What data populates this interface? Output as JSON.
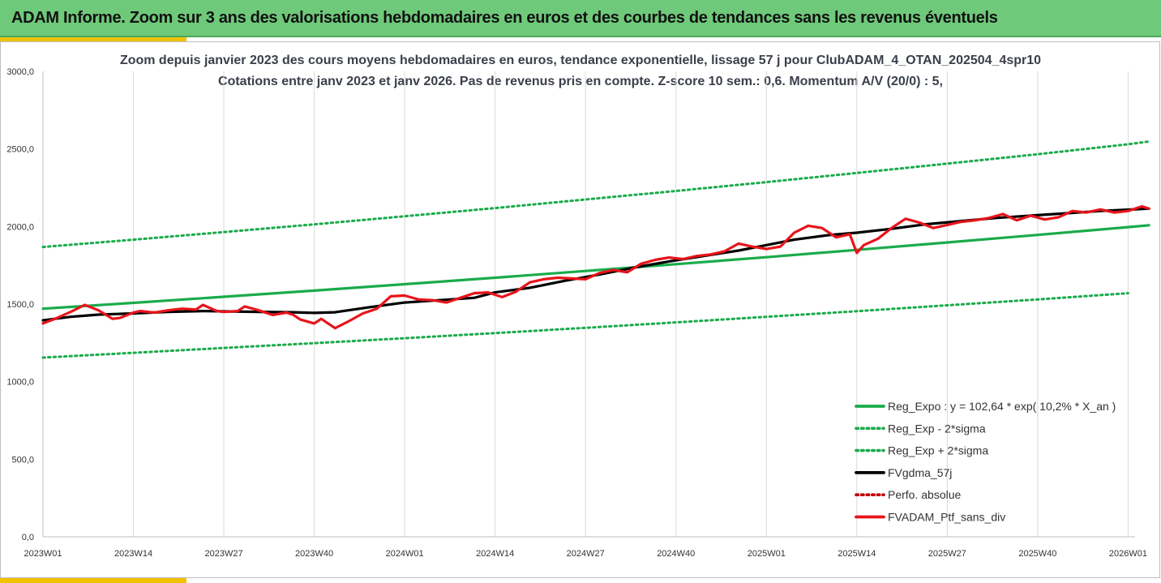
{
  "header": {
    "title": "ADAM Informe. Zoom sur 3 ans des valorisations hebdomadaires en euros et des courbes de tendances sans les revenus éventuels"
  },
  "colors": {
    "banner": "#6fc97a",
    "accent": "#f2c200",
    "reg_green": "#1aab4b",
    "fv_black": "#000000",
    "perf_red": "#c00000",
    "adam_red": "#e8141b"
  },
  "chart_data": {
    "type": "line",
    "title": "Zoom depuis janvier 2023 des cours moyens hebdomadaires  en euros, tendance exponentielle, lissage 57 j pour ClubADAM_4_OTAN_202504_4spr10",
    "subtitle": "Cotations entre janv 2023 et janv 2026. Pas de revenus pris en compte. Z-score 10 sem.: 0,6. Momentum A/V (20/0) : 5,",
    "ylim": [
      0,
      3000
    ],
    "y_ticks": [
      "0,0",
      "500,0",
      "1000,0",
      "1500,0",
      "2000,0",
      "2500,0",
      "3000,0"
    ],
    "x_range": [
      0,
      157
    ],
    "x_ticks": [
      {
        "pos": 0,
        "label": "2023W01"
      },
      {
        "pos": 13,
        "label": "2023W14"
      },
      {
        "pos": 26,
        "label": "2023W27"
      },
      {
        "pos": 39,
        "label": "2023W40"
      },
      {
        "pos": 52,
        "label": "2024W01"
      },
      {
        "pos": 65,
        "label": "2024W14"
      },
      {
        "pos": 78,
        "label": "2024W27"
      },
      {
        "pos": 91,
        "label": "2024W40"
      },
      {
        "pos": 104,
        "label": "2025W01"
      },
      {
        "pos": 117,
        "label": "2025W14"
      },
      {
        "pos": 130,
        "label": "2025W27"
      },
      {
        "pos": 143,
        "label": "2025W40"
      },
      {
        "pos": 156,
        "label": "2026W01"
      }
    ],
    "grid": "vertical",
    "legend_position": "bottom-right",
    "series": [
      {
        "name": "Reg_Expo : y = 102,64 * exp( 10,2% *  X_an )",
        "style": "solid",
        "color": "#1aab4b",
        "x": [
          0,
          13,
          26,
          39,
          52,
          65,
          78,
          91,
          104,
          117,
          130,
          143,
          156,
          159
        ],
        "y": [
          1470,
          1508,
          1547,
          1587,
          1628,
          1670,
          1713,
          1757,
          1802,
          1849,
          1897,
          1946,
          1996,
          2008
        ]
      },
      {
        "name": "Reg_Exp - 2*sigma",
        "style": "dotted",
        "color": "#1aab4b",
        "x": [
          0,
          13,
          26,
          39,
          52,
          65,
          78,
          91,
          104,
          117,
          130,
          143,
          156
        ],
        "y": [
          1155,
          1186,
          1217,
          1248,
          1280,
          1313,
          1347,
          1382,
          1418,
          1454,
          1492,
          1530,
          1570
        ]
      },
      {
        "name": "Reg_Exp + 2*sigma",
        "style": "dotted",
        "color": "#1aab4b",
        "x": [
          0,
          13,
          26,
          39,
          52,
          65,
          78,
          91,
          104,
          117,
          130,
          143,
          156,
          159
        ],
        "y": [
          1868,
          1915,
          1964,
          2014,
          2066,
          2119,
          2174,
          2229,
          2286,
          2345,
          2405,
          2466,
          2530,
          2548
        ]
      },
      {
        "name": "FVgdma_57j",
        "style": "solid",
        "color": "#000000",
        "x": [
          0,
          4,
          8,
          13,
          18,
          23,
          26,
          31,
          36,
          39,
          42,
          47,
          52,
          57,
          62,
          65,
          70,
          75,
          80,
          85,
          90,
          95,
          100,
          104,
          108,
          113,
          117,
          122,
          127,
          132,
          137,
          142,
          147,
          152,
          159
        ],
        "y": [
          1395,
          1418,
          1432,
          1440,
          1450,
          1455,
          1453,
          1450,
          1447,
          1443,
          1447,
          1480,
          1510,
          1525,
          1540,
          1575,
          1605,
          1650,
          1690,
          1735,
          1775,
          1810,
          1845,
          1880,
          1915,
          1945,
          1960,
          1985,
          2015,
          2035,
          2055,
          2070,
          2085,
          2100,
          2115
        ]
      },
      {
        "name": "Perfo. absolue",
        "style": "dotted",
        "color": "#c00000",
        "x": [],
        "y": []
      },
      {
        "name": "FVADAM_Ptf_sans_div",
        "style": "solid",
        "color": "#e8141b",
        "x": [
          0,
          2,
          4,
          6,
          8,
          10,
          11,
          13,
          14,
          16,
          18,
          20,
          22,
          23,
          25,
          26,
          28,
          29,
          31,
          33,
          35,
          36,
          37,
          39,
          40,
          42,
          44,
          46,
          48,
          50,
          52,
          54,
          56,
          58,
          60,
          62,
          64,
          66,
          68,
          70,
          72,
          74,
          76,
          78,
          80,
          82,
          84,
          86,
          88,
          90,
          92,
          94,
          96,
          98,
          100,
          102,
          104,
          106,
          108,
          110,
          112,
          114,
          116,
          117,
          118,
          120,
          122,
          124,
          126,
          128,
          130,
          132,
          134,
          136,
          138,
          140,
          142,
          144,
          146,
          148,
          150,
          152,
          154,
          156,
          158,
          159
        ],
        "y": [
          1375,
          1410,
          1450,
          1495,
          1460,
          1405,
          1410,
          1445,
          1455,
          1445,
          1460,
          1470,
          1465,
          1495,
          1455,
          1450,
          1455,
          1485,
          1460,
          1430,
          1445,
          1430,
          1400,
          1375,
          1405,
          1345,
          1390,
          1440,
          1470,
          1550,
          1555,
          1530,
          1525,
          1510,
          1540,
          1570,
          1575,
          1545,
          1580,
          1640,
          1660,
          1670,
          1665,
          1660,
          1700,
          1720,
          1705,
          1760,
          1785,
          1800,
          1790,
          1810,
          1820,
          1840,
          1890,
          1870,
          1855,
          1870,
          1960,
          2005,
          1990,
          1930,
          1950,
          1830,
          1880,
          1920,
          1990,
          2050,
          2025,
          1990,
          2010,
          2030,
          2040,
          2055,
          2080,
          2040,
          2070,
          2045,
          2060,
          2100,
          2090,
          2110,
          2090,
          2100,
          2130,
          2115
        ]
      }
    ]
  }
}
